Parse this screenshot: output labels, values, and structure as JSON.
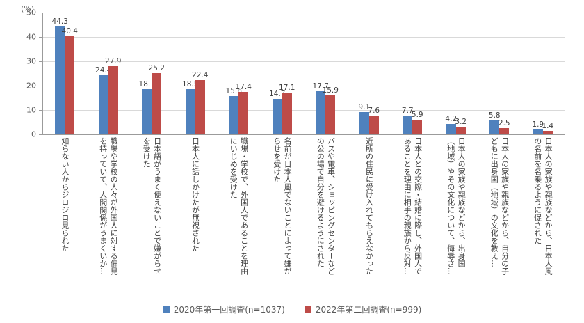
{
  "chart_data": {
    "type": "bar",
    "title": "",
    "ylabel": "(%)",
    "xlabel": "",
    "ylim": [
      0,
      50
    ],
    "yticks": [
      0,
      10,
      20,
      30,
      40,
      50
    ],
    "grid": true,
    "legend_position": "bottom",
    "categories": [
      "知らない人からジロジロ見られた",
      "職場や学校の人々が外国人に対する偏見を持っていて、人間関係がうまくいか…",
      "日本語がうまく使えないことで嫌がらせを受けた",
      "日本人に話しかけたが無視された",
      "職場・学校で、外国人であることを理由にいじめを受けた",
      "名前が日本人風でないことによって嫌がらせを受けた",
      "バスや電車、ショッピングセンターなどの公の場で自分を避けるようにされた",
      "近所の住民に受け入れてもらえなかった",
      "日本人との交際・結婚に際し、外国人であることを理由に相手の親族から反対…",
      "日本人の家族や親族などから、出身国（地域）やその文化について、侮辱さ…",
      "日本人の家族や親族などから、自分の子どもに出身国（地域）の文化を教え…",
      "日本人の家族や親族などから、日本人風の名前を名乗るように促された"
    ],
    "series": [
      {
        "name": "2020年第一回調査(n=1037)",
        "color": "#4f81bd",
        "values": [
          44.3,
          24.4,
          18.7,
          18.5,
          15.6,
          14.7,
          17.7,
          9.1,
          7.7,
          4.2,
          5.8,
          1.9
        ]
      },
      {
        "name": "2022年第二回調査(n=999)",
        "color": "#be4b48",
        "values": [
          40.4,
          27.9,
          25.2,
          22.4,
          17.4,
          17.1,
          15.9,
          7.6,
          5.9,
          3.2,
          2.5,
          1.4
        ]
      }
    ]
  }
}
